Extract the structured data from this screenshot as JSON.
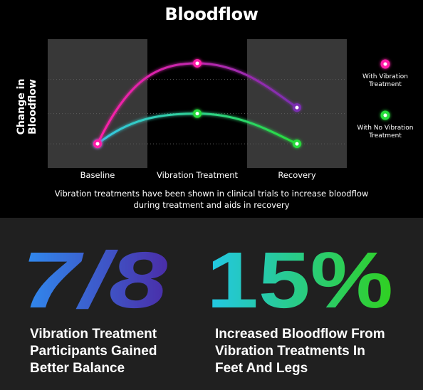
{
  "chart_data": {
    "type": "line",
    "title": "Bloodflow",
    "ylabel": "Change in Bloodflow",
    "categories": [
      "Baseline",
      "Vibration Treatment",
      "Recovery"
    ],
    "series": [
      {
        "name": "With Vibration Treatment",
        "values": [
          0,
          2.0,
          0.9
        ],
        "colors": [
          "#ff1fa8",
          "#7a2fb0"
        ]
      },
      {
        "name": "With No Vibration Treatment",
        "values": [
          0,
          0.75,
          0
        ],
        "colors": [
          "#35c7e8",
          "#28dc3a"
        ]
      }
    ],
    "ylim": [
      -0.6,
      2.6
    ],
    "legend_position": "right",
    "caption": "Vibration treatments have been shown in clinical trials to increase bloodflow during treatment and aids in recovery"
  },
  "stats": [
    {
      "value": "7/8",
      "label_lines": [
        "Vibration Treatment",
        "Participants Gained",
        "Better Balance"
      ],
      "colors": [
        "#2f8cf0",
        "#4a2da8"
      ]
    },
    {
      "value": "15%",
      "label_lines": [
        "Increased Bloodflow From",
        "Vibration Treatments In",
        "Feet And Legs"
      ],
      "colors": [
        "#22c7e8",
        "#30d020"
      ]
    }
  ]
}
